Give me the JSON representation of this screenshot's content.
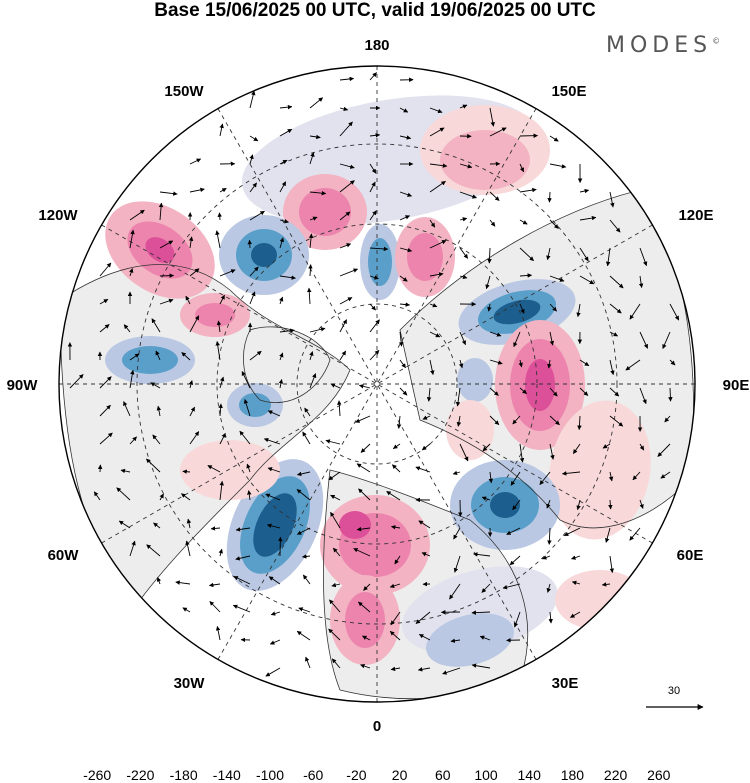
{
  "title": "Base 15/06/2025 00 UTC, valid 19/06/2025 00 UTC",
  "logo": "MODES",
  "logo_mark": "©",
  "longitude_labels": {
    "lon_180": "180",
    "lon_150W": "150W",
    "lon_150E": "150E",
    "lon_120W": "120W",
    "lon_120E": "120E",
    "lon_90W": "90W",
    "lon_90E": "90E",
    "lon_60W": "60W",
    "lon_60E": "60E",
    "lon_30W": "30W",
    "lon_30E": "30E",
    "lon_0": "0"
  },
  "reference_vector": "30",
  "colorbar": {
    "ticks": [
      "-260",
      "-220",
      "-180",
      "-140",
      "-100",
      "-60",
      "-20",
      "20",
      "60",
      "100",
      "140",
      "180",
      "220",
      "260"
    ],
    "colors": [
      "#0b3a5c",
      "#1c5f8f",
      "#2e7fb3",
      "#5a9fca",
      "#8fb6d9",
      "#bac8e3",
      "#e2e2ef",
      "#ffffff",
      "#f8d8d8",
      "#f3b3c2",
      "#ec84ad",
      "#dc4f99",
      "#c0208a",
      "#8e117f",
      "#5e0f6e"
    ]
  },
  "anomaly_colors": {
    "neg_strong": "#1c5f8f",
    "neg_mid": "#5a9fca",
    "neg_weak": "#bac8e3",
    "neg_faint": "#e2e2ef",
    "pos_faint": "#f8d8d8",
    "pos_weak": "#f3b3c2",
    "pos_mid": "#ec84ad",
    "pos_strong": "#dc4f99",
    "land": "#ededed"
  }
}
